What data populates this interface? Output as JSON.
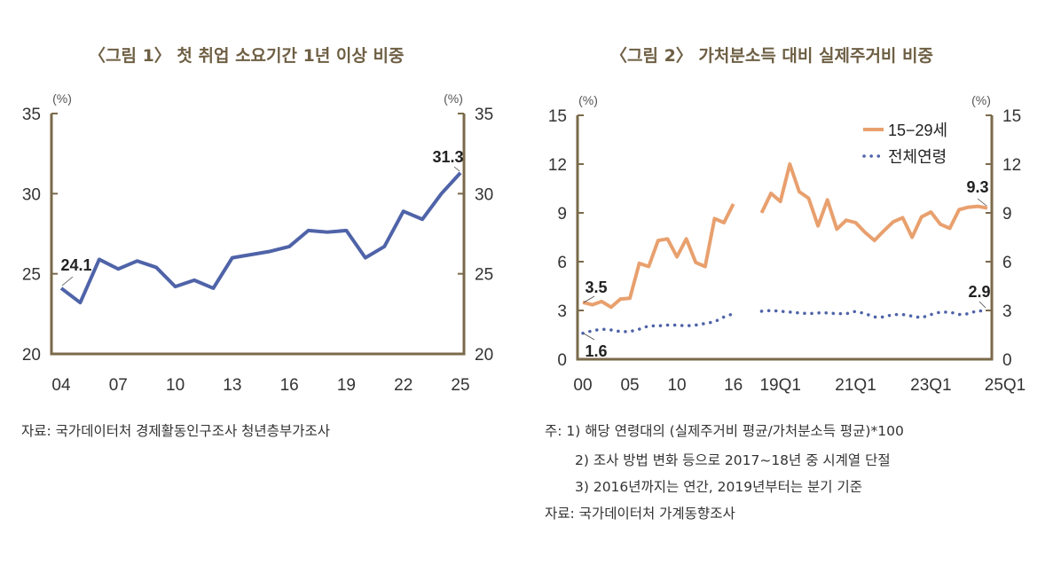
{
  "chart_data": [
    {
      "type": "line",
      "title": "〈그림 1〉 첫 취업 소요기간 1년 이상 비중",
      "unit_left": "(%)",
      "unit_right": "(%)",
      "ylim": [
        20,
        35
      ],
      "yticks": [
        20,
        25,
        30,
        35
      ],
      "x": [
        2004,
        2005,
        2006,
        2007,
        2008,
        2009,
        2010,
        2011,
        2012,
        2013,
        2014,
        2015,
        2016,
        2017,
        2018,
        2019,
        2020,
        2021,
        2022,
        2023,
        2024,
        2025
      ],
      "xtick_labels": [
        "04",
        "07",
        "10",
        "13",
        "16",
        "19",
        "22",
        "25"
      ],
      "series": [
        {
          "values": [
            24.1,
            23.2,
            25.9,
            25.3,
            25.8,
            25.4,
            24.2,
            24.6,
            24.1,
            26.0,
            26.2,
            26.4,
            26.7,
            27.7,
            27.6,
            27.7,
            26.0,
            26.7,
            28.9,
            28.4,
            30.0,
            31.3
          ],
          "color": "#4f63a8"
        }
      ],
      "annotations": [
        "24.1",
        "31.3"
      ],
      "grid": false
    },
    {
      "type": "line",
      "title": "〈그림 2〉 가처분소득 대비 실제주거비 비중",
      "unit_left": "(%)",
      "unit_right": "(%)",
      "ylim": [
        0,
        15
      ],
      "yticks": [
        0,
        3,
        6,
        9,
        12,
        15
      ],
      "x_annual": [
        "2000",
        "2001",
        "2002",
        "2003",
        "2004",
        "2005",
        "2006",
        "2007",
        "2008",
        "2009",
        "2010",
        "2011",
        "2012",
        "2013",
        "2014",
        "2015",
        "2016"
      ],
      "x_quarterly": [
        "19Q1",
        "19Q2",
        "19Q3",
        "19Q4",
        "20Q1",
        "20Q2",
        "20Q3",
        "20Q4",
        "21Q1",
        "21Q2",
        "21Q3",
        "21Q4",
        "22Q1",
        "22Q2",
        "22Q3",
        "22Q4",
        "23Q1",
        "23Q2",
        "23Q3",
        "23Q4",
        "24Q1",
        "24Q2",
        "24Q3",
        "24Q4",
        "25Q1"
      ],
      "xtick_labels": [
        "00",
        "05",
        "10",
        "16",
        "19Q1",
        "21Q1",
        "23Q1",
        "25Q1"
      ],
      "series": [
        {
          "name": "15~29세",
          "color": "#e8a06e",
          "style": "solid",
          "annual": [
            3.5,
            3.35,
            3.55,
            3.2,
            3.7,
            3.75,
            5.9,
            5.7,
            7.3,
            7.4,
            6.3,
            7.4,
            5.95,
            5.7,
            8.65,
            8.4,
            9.55
          ],
          "quarterly": [
            9.0,
            10.2,
            9.7,
            12.0,
            10.3,
            9.9,
            8.2,
            9.8,
            8.0,
            8.55,
            8.4,
            7.8,
            7.3,
            7.9,
            8.45,
            8.7,
            7.5,
            8.75,
            9.05,
            8.3,
            8.05,
            9.2,
            9.35,
            9.4,
            9.3
          ]
        },
        {
          "name": "전체연령",
          "color": "#4f63a8",
          "style": "dotted",
          "annual": [
            1.6,
            1.75,
            1.85,
            1.8,
            1.7,
            1.7,
            1.85,
            2.05,
            2.05,
            2.1,
            2.1,
            2.05,
            2.1,
            2.2,
            2.3,
            2.6,
            2.8
          ],
          "quarterly": [
            2.95,
            3.0,
            2.95,
            2.9,
            2.85,
            2.8,
            2.85,
            2.85,
            2.8,
            2.8,
            2.95,
            2.8,
            2.6,
            2.6,
            2.75,
            2.75,
            2.65,
            2.55,
            2.75,
            2.9,
            2.9,
            2.75,
            2.8,
            3.0,
            2.9
          ]
        }
      ],
      "legend_labels": [
        "15−29세",
        "전체연령"
      ],
      "legend_position": "top-right",
      "annotations": [
        "3.5",
        "1.6",
        "9.3",
        "2.9"
      ],
      "grid": false
    }
  ],
  "notes1": {
    "source": "자료: 국가데이터처 경제활동인구조사 청년층부가조사"
  },
  "notes2": {
    "n1": "주:  1) 해당 연령대의 (실제주거비 평균/가처분소득 평균)*100",
    "n2": "2) 조사 방법 변화 등으로 2017~18년 중 시계열 단절",
    "n3": "3) 2016년까지는 연간,  2019년부터는 분기 기준",
    "source": "자료: 국가데이터처 가계동향조사"
  },
  "colors": {
    "axis": "#7a6a4a",
    "title": "#6e5f44"
  }
}
